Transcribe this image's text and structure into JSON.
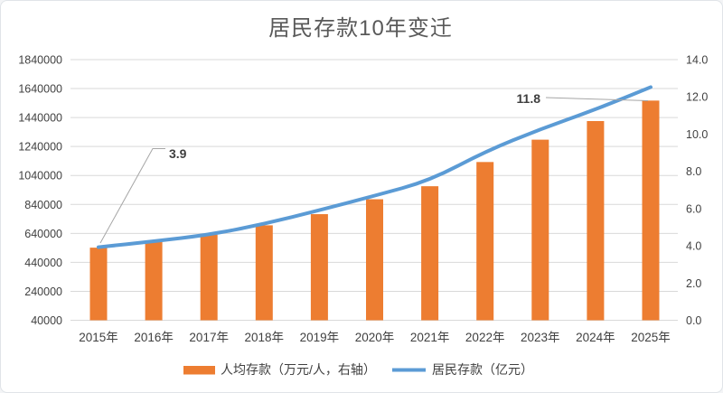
{
  "window": {
    "background": "#ffffff",
    "border_color": "#e0e4e8"
  },
  "chart_data": {
    "type": "bar",
    "combo": true,
    "title": "居民存款10年变迁",
    "categories": [
      "2015年",
      "2016年",
      "2017年",
      "2018年",
      "2019年",
      "2020年",
      "2021年",
      "2022年",
      "2023年",
      "2024年",
      "2025年"
    ],
    "series": [
      {
        "name": "人均存款（万元/人，右轴）",
        "type": "bar",
        "axis": "right",
        "color": "#ED7D31",
        "values": [
          3.9,
          4.2,
          4.6,
          5.1,
          5.7,
          6.5,
          7.2,
          8.5,
          9.7,
          10.7,
          11.8
        ]
      },
      {
        "name": "居民存款（亿元）",
        "type": "line",
        "axis": "left",
        "color": "#5B9BD5",
        "values": [
          545000,
          585000,
          630000,
          705000,
          800000,
          900000,
          1005000,
          1205000,
          1360000,
          1495000,
          1650000
        ]
      }
    ],
    "left_axis": {
      "min": 40000,
      "max": 1840000,
      "step": 200000,
      "tick_labels": [
        "40000",
        "240000",
        "440000",
        "640000",
        "840000",
        "1040000",
        "1240000",
        "1440000",
        "1640000",
        "1840000"
      ]
    },
    "right_axis": {
      "min": 0.0,
      "max": 14.0,
      "step": 2.0,
      "tick_labels": [
        "0.0",
        "2.0",
        "4.0",
        "6.0",
        "8.0",
        "10.0",
        "12.0",
        "14.0"
      ]
    },
    "annotations": [
      {
        "text": "3.9",
        "series": 0,
        "category": "2015年"
      },
      {
        "text": "11.8",
        "series": 0,
        "category": "2025年"
      }
    ],
    "legend_position": "bottom",
    "grid": true,
    "gridline_color": "#d9d9d9",
    "leader_line_color": "#a6a6a6"
  }
}
